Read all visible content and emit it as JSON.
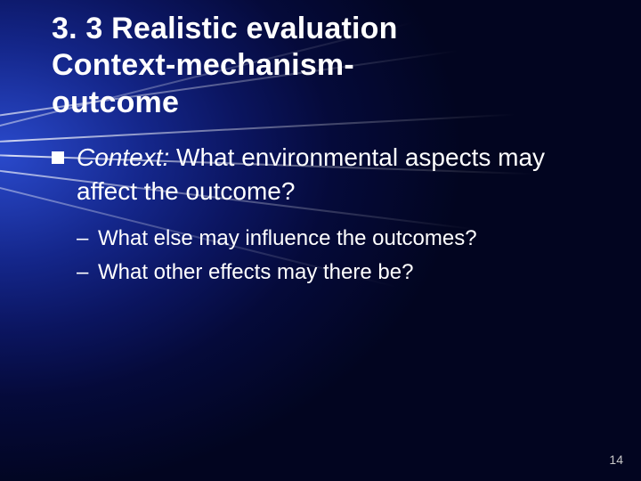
{
  "title": {
    "line1": "3. 3 Realistic evaluation",
    "line2": "Context-mechanism-",
    "line3": "outcome"
  },
  "level1": {
    "lead": "Context:",
    "rest": " What environmental aspects may affect the outcome?"
  },
  "level2": [
    "What else may influence the outcomes?",
    "What other effects may there be?"
  ],
  "dash": "–",
  "page_number": "14",
  "colors": {
    "text": "#ffffff",
    "pagenum": "#c8c8c8"
  }
}
